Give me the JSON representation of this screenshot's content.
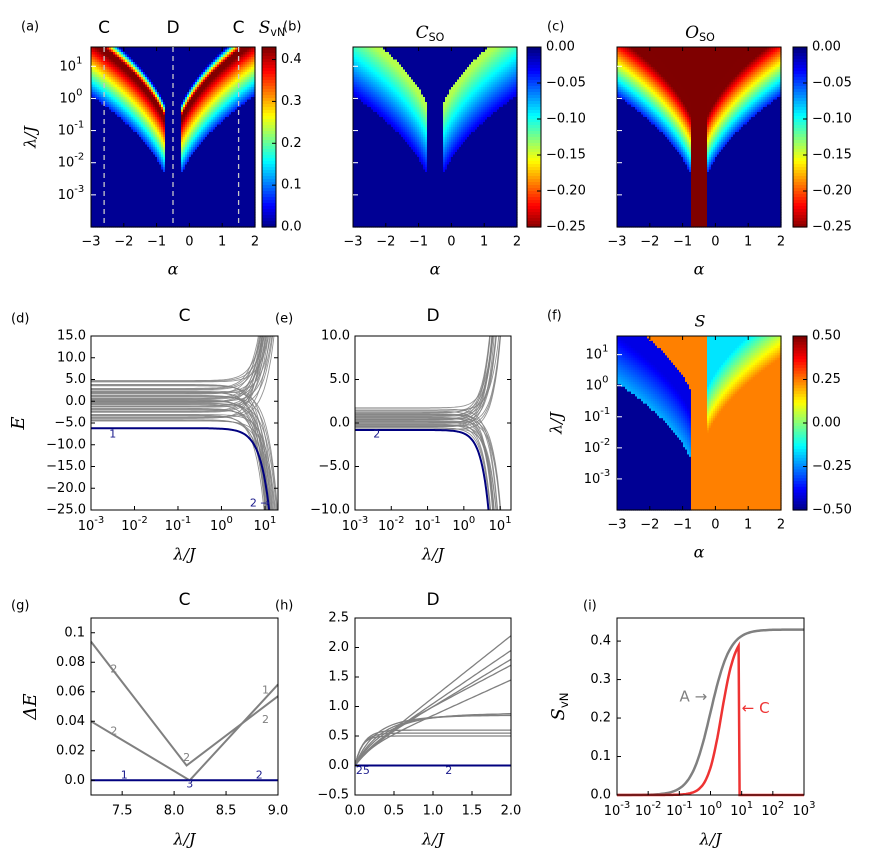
{
  "colors": {
    "jet": [
      "#00007f",
      "#0000ff",
      "#007fff",
      "#00ffff",
      "#7fff7f",
      "#ffff00",
      "#ff7f00",
      "#ff0000",
      "#7f0000"
    ],
    "gray_line": "#808080",
    "blue_line": "#00007f",
    "red_line": "#ee3333",
    "annotation_blue": "#1a1a8c",
    "annotation_gray": "#808080"
  },
  "heatmap_common": {
    "alpha_ticks": [
      "−3",
      "−2",
      "−1",
      "0",
      "1",
      "2"
    ],
    "lambda_ticks": [
      "10^1",
      "10^0",
      "10^-1",
      "10^-2",
      "10^-3"
    ],
    "xlabel": "α",
    "ylabel": "λ/J"
  },
  "chart_data": [
    {
      "id": "a",
      "panel_label": "(a)",
      "type": "heatmap",
      "title": "S_vN",
      "title_main": "S",
      "title_sub": "vN",
      "title_font": "script",
      "region_labels": [
        {
          "text": "C",
          "alpha": -2.6
        },
        {
          "text": "D",
          "alpha": -0.5
        },
        {
          "text": "C",
          "alpha": 1.5
        }
      ],
      "dashed_lines_alpha": [
        -2.6,
        -0.5,
        1.5
      ],
      "xlim": [
        -3,
        2
      ],
      "ylim_log10": [
        -4,
        1.6
      ],
      "colorbar": {
        "min": 0.0,
        "max": 0.43,
        "ticks": [
          "0.4",
          "0.3",
          "0.2",
          "0.1",
          "0.0"
        ],
        "reversed": false
      },
      "background_value": "0.0"
    },
    {
      "id": "b",
      "panel_label": "(b)",
      "type": "heatmap",
      "title": "C_SO",
      "title_main": "C",
      "title_sub": "SO",
      "xlim": [
        -3,
        2
      ],
      "ylim_log10": [
        -4,
        1.6
      ],
      "colorbar": {
        "min": -0.25,
        "max": 0.0,
        "ticks": [
          "0.00",
          "−0.05",
          "−0.10",
          "−0.15",
          "−0.20",
          "−0.25"
        ],
        "reversed": true
      }
    },
    {
      "id": "c",
      "panel_label": "(c)",
      "type": "heatmap",
      "title": "O_SO",
      "title_main": "O",
      "title_sub": "SO",
      "xlim": [
        -3,
        2
      ],
      "ylim_log10": [
        -4,
        1.6
      ],
      "colorbar": {
        "min": -0.25,
        "max": 0.0,
        "ticks": [
          "0.00",
          "−0.05",
          "−0.10",
          "−0.15",
          "−0.20",
          "−0.25"
        ],
        "reversed": true
      }
    },
    {
      "id": "d",
      "panel_label": "(d)",
      "type": "line",
      "title": "C",
      "xlabel": "λ/J",
      "ylabel": "E",
      "xscale": "log",
      "xlim_log10": [
        -3,
        1.3
      ],
      "ylim": [
        -25,
        15
      ],
      "yticks": [
        "15.0",
        "10.0",
        "5.0",
        "0.0",
        "−5.0",
        "−10.0",
        "−15.0",
        "−20.0",
        "−25.0"
      ],
      "xticks": [
        "10^-3",
        "10^-2",
        "10^-1",
        "10^0",
        "10^1"
      ],
      "ground_level": -6.2,
      "annotations": [
        "1",
        "2 →"
      ]
    },
    {
      "id": "e",
      "panel_label": "(e)",
      "type": "line",
      "title": "D",
      "xlabel": "λ/J",
      "ylabel": "",
      "xscale": "log",
      "xlim_log10": [
        -3,
        1.3
      ],
      "ylim": [
        -10,
        10
      ],
      "yticks": [
        "10.0",
        "5.0",
        "0.0",
        "−5.0",
        "−10.0"
      ],
      "xticks": [
        "10^-3",
        "10^-2",
        "10^-1",
        "10^0",
        "10^1"
      ],
      "ground_level": -0.8,
      "annotations": [
        "2"
      ]
    },
    {
      "id": "f",
      "panel_label": "(f)",
      "type": "heatmap",
      "title": "S",
      "xlabel": "α",
      "ylabel": "λ/J",
      "xlim": [
        -3,
        2
      ],
      "ylim_log10": [
        -4,
        1.6
      ],
      "colorbar": {
        "min": -0.5,
        "max": 0.5,
        "ticks": [
          "0.50",
          "0.25",
          "0.00",
          "−0.25",
          "−0.50"
        ],
        "reversed": false
      }
    },
    {
      "id": "g",
      "panel_label": "(g)",
      "type": "line",
      "title": "C",
      "xlabel": "λ/J",
      "ylabel": "ΔE",
      "xlim": [
        7.2,
        9.0
      ],
      "ylim": [
        -0.01,
        0.11
      ],
      "xticks": [
        "7.5",
        "8.0",
        "8.5",
        "9.0"
      ],
      "xtick_values": [
        7.5,
        8.0,
        8.5,
        9.0
      ],
      "yticks": [
        "0.1",
        "0.08",
        "0.06",
        "0.04",
        "0.02",
        "0.0"
      ],
      "ytick_values": [
        0.1,
        0.08,
        0.06,
        0.04,
        0.02,
        0.0
      ],
      "series": [
        {
          "x": [
            7.2,
            8.12,
            9.0
          ],
          "y": [
            0.094,
            0.01,
            0.057
          ]
        },
        {
          "x": [
            7.2,
            8.15,
            9.0
          ],
          "y": [
            0.04,
            0.0,
            0.065
          ]
        },
        {
          "x": [
            7.2,
            9.0
          ],
          "y": [
            0.0,
            0.0
          ],
          "ground": true
        }
      ],
      "annotations": [
        {
          "text": "2",
          "x": 7.42,
          "y": 0.075,
          "color": "gray"
        },
        {
          "text": "2",
          "x": 7.42,
          "y": 0.033,
          "color": "gray"
        },
        {
          "text": "2",
          "x": 8.12,
          "y": 0.015,
          "color": "gray"
        },
        {
          "text": "3",
          "x": 8.15,
          "y": -0.003,
          "color": "blue"
        },
        {
          "text": "1",
          "x": 7.52,
          "y": 0.0,
          "color": "blue"
        },
        {
          "text": "2",
          "x": 8.82,
          "y": 0.0,
          "color": "blue"
        },
        {
          "text": "1",
          "x": 8.88,
          "y": 0.061,
          "color": "gray"
        },
        {
          "text": "2",
          "x": 8.88,
          "y": 0.041,
          "color": "gray"
        }
      ]
    },
    {
      "id": "h",
      "panel_label": "(h)",
      "type": "line",
      "title": "D",
      "xlabel": "λ/J",
      "ylabel": "",
      "xlim": [
        0,
        2.0
      ],
      "ylim": [
        -0.5,
        2.5
      ],
      "xticks": [
        "0.0",
        "0.5",
        "1.0",
        "1.5",
        "2.0"
      ],
      "xtick_values": [
        0,
        0.5,
        1.0,
        1.5,
        2.0
      ],
      "yticks": [
        "2.5",
        "2.0",
        "1.5",
        "1.0",
        "0.5",
        "0.0",
        "−0.5"
      ],
      "ytick_values": [
        2.5,
        2.0,
        1.5,
        1.0,
        0.5,
        0.0,
        -0.5
      ],
      "annotations": [
        {
          "text": "25",
          "x": 0.05,
          "y": -0.09,
          "color": "blue"
        },
        {
          "text": "2",
          "x": 1.15,
          "y": -0.09,
          "color": "blue"
        }
      ]
    },
    {
      "id": "i",
      "panel_label": "(i)",
      "type": "line",
      "xlabel": "λ/J",
      "ylabel": "S_vN",
      "ylabel_main": "S",
      "ylabel_sub": "vN",
      "xscale": "log",
      "xlim_log10": [
        -3,
        3
      ],
      "ylim": [
        0,
        0.46
      ],
      "xticks": [
        "10^-3",
        "10^-2",
        "10^-1",
        "10^0",
        "10^1",
        "10^2",
        "10^3"
      ],
      "yticks": [
        "0.4",
        "0.3",
        "0.2",
        "0.1",
        "0.0"
      ],
      "ytick_values": [
        0.4,
        0.3,
        0.2,
        0.1,
        0.0
      ],
      "series": [
        {
          "name": "A",
          "color": "gray",
          "saturation": 0.43
        },
        {
          "name": "C",
          "color": "red",
          "peak": 0.42,
          "peak_lambda": 8.0
        }
      ],
      "annotations": [
        {
          "text": "A →",
          "color": "gray"
        },
        {
          "text": "← C",
          "color": "red"
        }
      ]
    }
  ]
}
